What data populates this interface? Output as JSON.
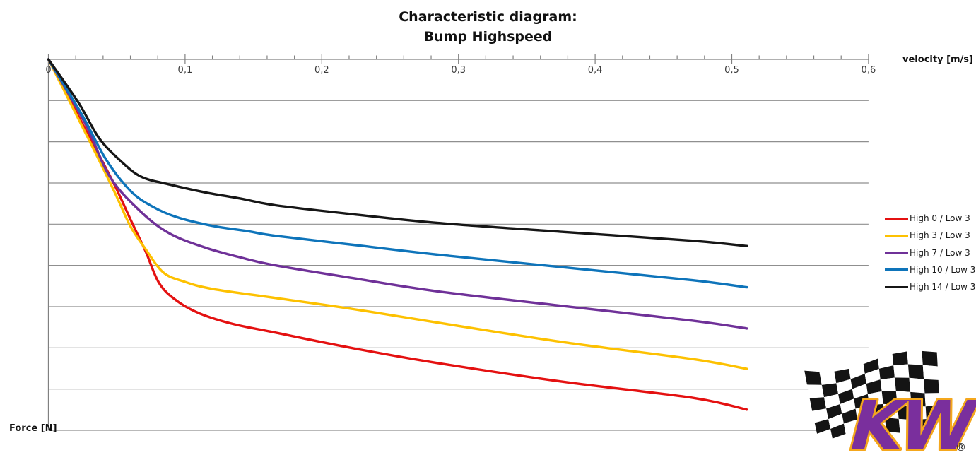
{
  "title": {
    "line1": "Characteristic diagram:",
    "line2": "Bump Highspeed"
  },
  "axes": {
    "x_label": "velocity [m/s]",
    "y_label": "Force [N]",
    "x_tick_labels": [
      "0",
      "0,1",
      "0,2",
      "0,3",
      "0,4",
      "0,5",
      "0,6"
    ]
  },
  "legend": {
    "items": [
      {
        "label": "High 0 / Low 3",
        "color": "#e41111"
      },
      {
        "label": "High 3 / Low 3",
        "color": "#fdc101"
      },
      {
        "label": "High 7 / Low 3",
        "color": "#6f3198"
      },
      {
        "label": "High 10 / Low 3",
        "color": "#0e74ba"
      },
      {
        "label": "High 14 / Low 3",
        "color": "#161616"
      }
    ]
  },
  "logo": {
    "text": "KW",
    "registered": "®",
    "purple": "#7a2f9d",
    "gold": "#f4a71d",
    "flag_dark": "#141414"
  },
  "colors": {
    "gridline": "#8f8f8f",
    "axis": "#808080",
    "tick": "#808080",
    "tick_label": "#3c3c3c"
  },
  "chart_data": {
    "type": "line",
    "title": "Characteristic diagram: Bump Highspeed",
    "xlabel": "velocity [m/s]",
    "ylabel": "Force [N]",
    "xlim": [
      0,
      0.6
    ],
    "x_major_tick_step": 0.1,
    "x_minor_tick_step": 0.02,
    "y_gridline_count": 9,
    "y_axis_numeric_labels": false,
    "y_unit_note": "Force axis has no numeric labels; y values below are in gridline units below zero (bump force plotted downward).",
    "grid": "horizontal only",
    "legend_position": "right",
    "series": [
      {
        "name": "High 0 / Low 3",
        "color": "#e41111",
        "points": [
          [
            0,
            0
          ],
          [
            0.029,
            -1.82
          ],
          [
            0.048,
            -3.02
          ],
          [
            0.06,
            -3.88
          ],
          [
            0.071,
            -4.65
          ],
          [
            0.081,
            -5.43
          ],
          [
            0.094,
            -5.86
          ],
          [
            0.111,
            -6.17
          ],
          [
            0.135,
            -6.42
          ],
          [
            0.166,
            -6.63
          ],
          [
            0.223,
            -7.01
          ],
          [
            0.285,
            -7.37
          ],
          [
            0.378,
            -7.83
          ],
          [
            0.471,
            -8.21
          ],
          [
            0.511,
            -8.5
          ]
        ]
      },
      {
        "name": "High 3 / Low 3",
        "color": "#fdc101",
        "points": [
          [
            0,
            0
          ],
          [
            0.029,
            -1.91
          ],
          [
            0.048,
            -3.19
          ],
          [
            0.06,
            -4.05
          ],
          [
            0.071,
            -4.6
          ],
          [
            0.084,
            -5.17
          ],
          [
            0.099,
            -5.39
          ],
          [
            0.12,
            -5.57
          ],
          [
            0.166,
            -5.79
          ],
          [
            0.223,
            -6.06
          ],
          [
            0.285,
            -6.39
          ],
          [
            0.378,
            -6.87
          ],
          [
            0.471,
            -7.27
          ],
          [
            0.511,
            -7.51
          ]
        ]
      },
      {
        "name": "High 7 / Low 3",
        "color": "#6f3198",
        "points": [
          [
            0,
            0
          ],
          [
            0.027,
            -1.56
          ],
          [
            0.045,
            -2.85
          ],
          [
            0.068,
            -3.71
          ],
          [
            0.089,
            -4.23
          ],
          [
            0.115,
            -4.57
          ],
          [
            0.141,
            -4.81
          ],
          [
            0.166,
            -5.0
          ],
          [
            0.223,
            -5.31
          ],
          [
            0.285,
            -5.63
          ],
          [
            0.378,
            -5.99
          ],
          [
            0.471,
            -6.34
          ],
          [
            0.511,
            -6.53
          ]
        ]
      },
      {
        "name": "High 10 / Low 3",
        "color": "#0e74ba",
        "points": [
          [
            0,
            0
          ],
          [
            0.024,
            -1.31
          ],
          [
            0.042,
            -2.42
          ],
          [
            0.06,
            -3.19
          ],
          [
            0.076,
            -3.57
          ],
          [
            0.094,
            -3.83
          ],
          [
            0.12,
            -4.04
          ],
          [
            0.146,
            -4.17
          ],
          [
            0.166,
            -4.28
          ],
          [
            0.223,
            -4.5
          ],
          [
            0.285,
            -4.74
          ],
          [
            0.378,
            -5.05
          ],
          [
            0.471,
            -5.36
          ],
          [
            0.511,
            -5.53
          ]
        ]
      },
      {
        "name": "High 14 / Low 3",
        "color": "#161616",
        "points": [
          [
            0,
            0
          ],
          [
            0.022,
            -1.05
          ],
          [
            0.037,
            -1.91
          ],
          [
            0.053,
            -2.47
          ],
          [
            0.068,
            -2.85
          ],
          [
            0.089,
            -3.04
          ],
          [
            0.115,
            -3.23
          ],
          [
            0.141,
            -3.38
          ],
          [
            0.166,
            -3.54
          ],
          [
            0.223,
            -3.76
          ],
          [
            0.285,
            -3.97
          ],
          [
            0.378,
            -4.19
          ],
          [
            0.471,
            -4.4
          ],
          [
            0.511,
            -4.53
          ]
        ]
      }
    ]
  }
}
